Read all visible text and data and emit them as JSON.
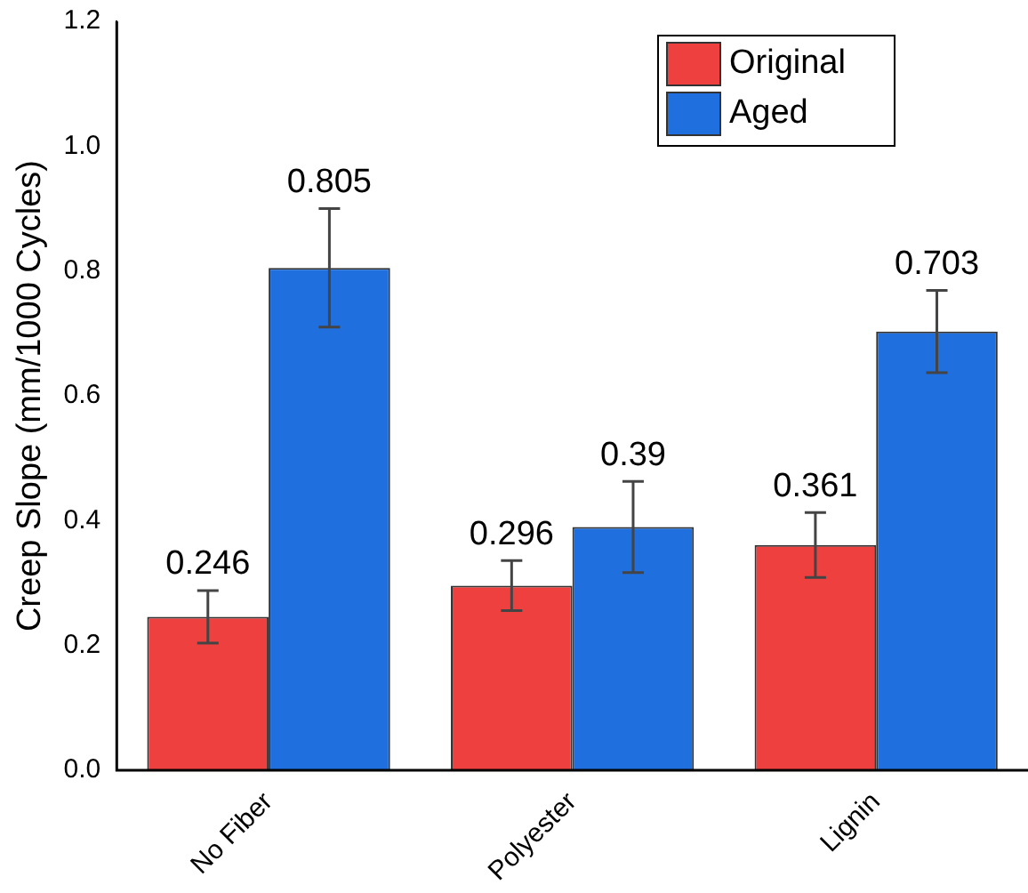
{
  "chart_data": {
    "type": "bar",
    "ylabel": "Creep Slope (mm/1000 Cycles)",
    "categories": [
      "No Fiber",
      "Polyester",
      "Lignin"
    ],
    "series": [
      {
        "name": "Original",
        "color": "#ef4040",
        "values": [
          0.246,
          0.296,
          0.361
        ],
        "errors": [
          0.042,
          0.04,
          0.052
        ]
      },
      {
        "name": "Aged",
        "color": "#1f6fdf",
        "values": [
          0.805,
          0.39,
          0.703
        ],
        "errors": [
          0.095,
          0.073,
          0.066
        ]
      }
    ],
    "ylim": [
      0,
      1.2
    ],
    "yticks": [
      {
        "value": 0,
        "label": "0.0"
      },
      {
        "value": 0.2,
        "label": "0.2"
      },
      {
        "value": 0.4,
        "label": "0.4"
      },
      {
        "value": 0.6,
        "label": "0.6"
      },
      {
        "value": 0.8,
        "label": "0.8"
      },
      {
        "value": 1,
        "label": "1.0"
      },
      {
        "value": 1.2,
        "label": "1.2"
      }
    ],
    "data_labels": true,
    "legend": "top right",
    "grid": false
  }
}
